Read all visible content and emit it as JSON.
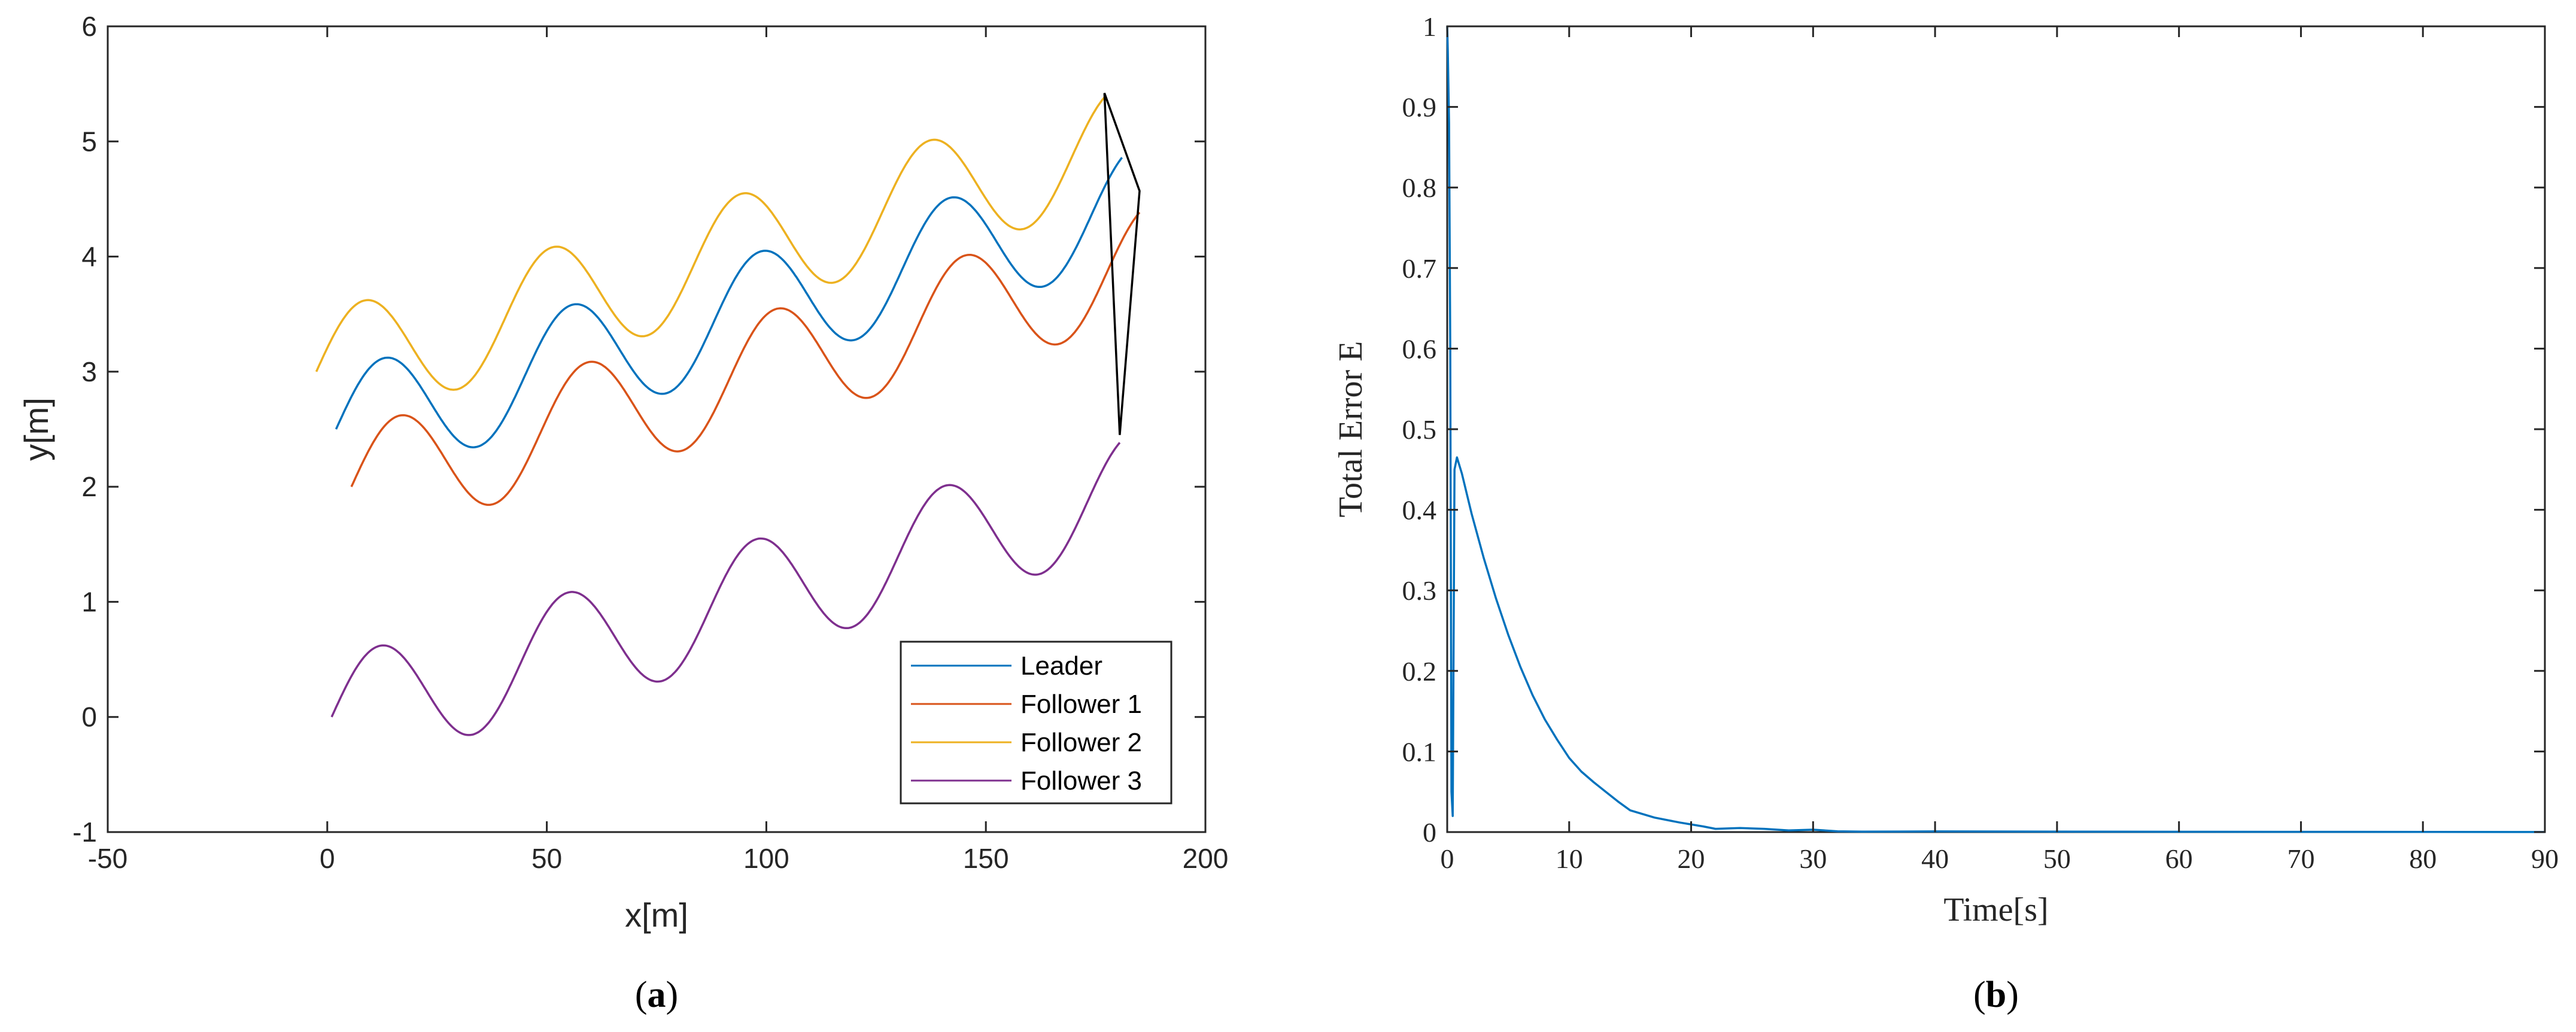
{
  "chart_data": [
    {
      "type": "line",
      "panel": "a",
      "caption_label": "(a)",
      "caption_paren_open": "(",
      "caption_letter": "a",
      "caption_paren_close": ")",
      "xlabel": "x[m]",
      "ylabel": "y[m]",
      "xlim": [
        -50,
        200
      ],
      "ylim": [
        -1,
        6
      ],
      "xticks": [
        -50,
        0,
        50,
        100,
        150,
        200
      ],
      "yticks": [
        -1,
        0,
        1,
        2,
        3,
        4,
        5,
        6
      ],
      "xtick_labels": [
        "-50",
        "0",
        "50",
        "100",
        "150",
        "200"
      ],
      "ytick_labels": [
        "-1",
        "0",
        "1",
        "2",
        "3",
        "4",
        "5",
        "6"
      ],
      "grid": false,
      "legend_position": "bottom-right",
      "series": [
        {
          "name": "Leader",
          "color": "#0072BD",
          "x_start": 2,
          "x_end": 181,
          "y0": 2.5,
          "trend": 0.0108,
          "amplitude": 0.5,
          "period": 43
        },
        {
          "name": "Follower 1",
          "color": "#D95319",
          "x_start": 5.5,
          "x_end": 185,
          "y0": 2.0,
          "trend": 0.0108,
          "amplitude": 0.5,
          "period": 43
        },
        {
          "name": "Follower 2",
          "color": "#EDB120",
          "x_start": -2.5,
          "x_end": 177,
          "y0": 3.0,
          "trend": 0.0108,
          "amplitude": 0.5,
          "period": 43
        },
        {
          "name": "Follower 3",
          "color": "#7E2F8E",
          "x_start": 1,
          "x_end": 180.5,
          "y0": 0.0,
          "trend": 0.0108,
          "amplitude": 0.5,
          "period": 43
        }
      ],
      "formation_polygon": {
        "color": "#000000",
        "points": [
          [
            177,
            5.42
          ],
          [
            185,
            4.57
          ],
          [
            180.5,
            2.45
          ]
        ]
      }
    },
    {
      "type": "line",
      "panel": "b",
      "caption_label": "(b)",
      "caption_paren_open": "(",
      "caption_letter": "b",
      "caption_paren_close": ")",
      "xlabel": "Time[s]",
      "ylabel": "Total Error E",
      "xlim": [
        0,
        90
      ],
      "ylim": [
        0,
        1
      ],
      "xticks": [
        0,
        10,
        20,
        30,
        40,
        50,
        60,
        70,
        80,
        90
      ],
      "yticks": [
        0,
        0.1,
        0.2,
        0.3,
        0.4,
        0.5,
        0.6,
        0.7,
        0.8,
        0.9,
        1
      ],
      "xtick_labels": [
        "0",
        "10",
        "20",
        "30",
        "40",
        "50",
        "60",
        "70",
        "80",
        "90"
      ],
      "ytick_labels": [
        "0",
        "0.1",
        "0.2",
        "0.3",
        "0.4",
        "0.5",
        "0.6",
        "0.7",
        "0.8",
        "0.9",
        "1"
      ],
      "grid": false,
      "series": [
        {
          "name": "Total Error E",
          "color": "#0072BD",
          "x": [
            0,
            0.05,
            0.15,
            0.25,
            0.35,
            0.45,
            0.6,
            0.8,
            1.2,
            2,
            3,
            4,
            5,
            6,
            7,
            8,
            9,
            10,
            11,
            12,
            13,
            14,
            15,
            17,
            19,
            21,
            22,
            24,
            26,
            28,
            30,
            32,
            34,
            40,
            50,
            60,
            70,
            80,
            90
          ],
          "y": [
            1.0,
            0.97,
            0.88,
            0.6,
            0.05,
            0.02,
            0.45,
            0.465,
            0.445,
            0.395,
            0.34,
            0.29,
            0.245,
            0.205,
            0.17,
            0.14,
            0.115,
            0.092,
            0.075,
            0.062,
            0.05,
            0.038,
            0.027,
            0.018,
            0.012,
            0.007,
            0.004,
            0.005,
            0.004,
            0.002,
            0.003,
            0.001,
            0.0005,
            0.0008,
            0.0005,
            0.0004,
            0.0003,
            0.0002,
            0.0001
          ]
        }
      ]
    }
  ]
}
